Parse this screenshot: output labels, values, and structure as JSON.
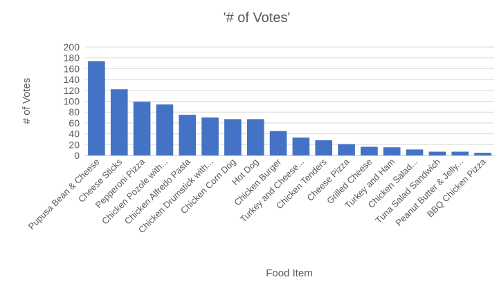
{
  "chart_data": {
    "type": "bar",
    "title": "'# of Votes'",
    "xlabel": "Food Item",
    "ylabel": "# of Votes",
    "ylim": [
      0,
      200
    ],
    "yticks": [
      0,
      20,
      40,
      60,
      80,
      100,
      120,
      140,
      160,
      180,
      200
    ],
    "grid": true,
    "legend": "none",
    "bar_color": "#4472C4",
    "grid_color": "#d9d9d9",
    "text_color": "#595959",
    "categories": [
      "Pupusa Bean & Cheese",
      "Cheese Sticks",
      "Pepperoni Pizza",
      "Chicken Pozole with...",
      "Chicken Alfredo Pasta",
      "Chicken Drumstick with...",
      "Chicken Corn Dog",
      "Hot Dog",
      "Chicken Burger",
      "Turkey and Cheese...",
      "Chicken Tenders",
      "Cheese Pizza",
      "Grilled Cheese",
      "Turkey and Ham",
      "Chicken Salad...",
      "Tuna Salad Sandwich",
      "Peanut Butter & Jelly...",
      "BBQ Chicken Pizza"
    ],
    "values": [
      174,
      122,
      99,
      94,
      75,
      70,
      67,
      67,
      45,
      33,
      28,
      21,
      16,
      15,
      11,
      7,
      7,
      5
    ]
  }
}
